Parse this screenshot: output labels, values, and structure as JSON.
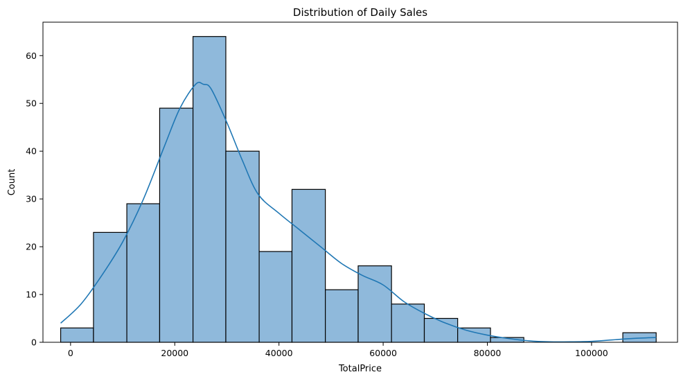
{
  "chart_data": {
    "type": "bar",
    "title": "Distribution of Daily Sales",
    "xlabel": "TotalPrice",
    "ylabel": "Count",
    "xlim": [
      -5300,
      116500
    ],
    "ylim": [
      0,
      67
    ],
    "grid": false,
    "bar_color": "#8fb9db",
    "edge_color": "#000000",
    "kde_color": "#1f77b4",
    "xticks": [
      {
        "value": 0,
        "label": "0"
      },
      {
        "value": 20000,
        "label": "20000"
      },
      {
        "value": 40000,
        "label": "40000"
      },
      {
        "value": 60000,
        "label": "60000"
      },
      {
        "value": 80000,
        "label": "80000"
      },
      {
        "value": 100000,
        "label": "100000"
      }
    ],
    "yticks": [
      {
        "value": 0,
        "label": "0"
      },
      {
        "value": 10,
        "label": "10"
      },
      {
        "value": 20,
        "label": "20"
      },
      {
        "value": 30,
        "label": "30"
      },
      {
        "value": 40,
        "label": "40"
      },
      {
        "value": 50,
        "label": "50"
      },
      {
        "value": 60,
        "label": "60"
      }
    ],
    "bins": [
      {
        "x0": -1900,
        "x1": 4400,
        "count": 3
      },
      {
        "x0": 4400,
        "x1": 10800,
        "count": 23
      },
      {
        "x0": 10800,
        "x1": 17100,
        "count": 29
      },
      {
        "x0": 17100,
        "x1": 23500,
        "count": 49
      },
      {
        "x0": 23500,
        "x1": 29800,
        "count": 64
      },
      {
        "x0": 29800,
        "x1": 36200,
        "count": 40
      },
      {
        "x0": 36200,
        "x1": 42500,
        "count": 19
      },
      {
        "x0": 42500,
        "x1": 48900,
        "count": 32
      },
      {
        "x0": 48900,
        "x1": 55200,
        "count": 11
      },
      {
        "x0": 55200,
        "x1": 61600,
        "count": 16
      },
      {
        "x0": 61600,
        "x1": 67900,
        "count": 8
      },
      {
        "x0": 67900,
        "x1": 74300,
        "count": 5
      },
      {
        "x0": 74300,
        "x1": 80600,
        "count": 3
      },
      {
        "x0": 80600,
        "x1": 87000,
        "count": 1
      },
      {
        "x0": 87000,
        "x1": 93300,
        "count": 0
      },
      {
        "x0": 93300,
        "x1": 99700,
        "count": 0
      },
      {
        "x0": 99700,
        "x1": 106000,
        "count": 0
      },
      {
        "x0": 106000,
        "x1": 112400,
        "count": 2
      }
    ],
    "kde": {
      "x": [
        -1900,
        2000,
        6000,
        10000,
        14000,
        18000,
        21000,
        24000,
        25500,
        27000,
        30000,
        33000,
        36000,
        40000,
        44000,
        48000,
        52000,
        56000,
        60000,
        64000,
        68000,
        72000,
        76000,
        80000,
        84000,
        88000,
        92000,
        96000,
        100000,
        104000,
        108000,
        112400
      ],
      "y": [
        4,
        8,
        14,
        21,
        30,
        41,
        49,
        54,
        54,
        53,
        46,
        38,
        31,
        27,
        23.5,
        20,
        16.5,
        14,
        12,
        8.5,
        6,
        4,
        2.5,
        1.5,
        0.8,
        0.3,
        0.1,
        0.1,
        0.2,
        0.5,
        0.8,
        1
      ]
    }
  }
}
